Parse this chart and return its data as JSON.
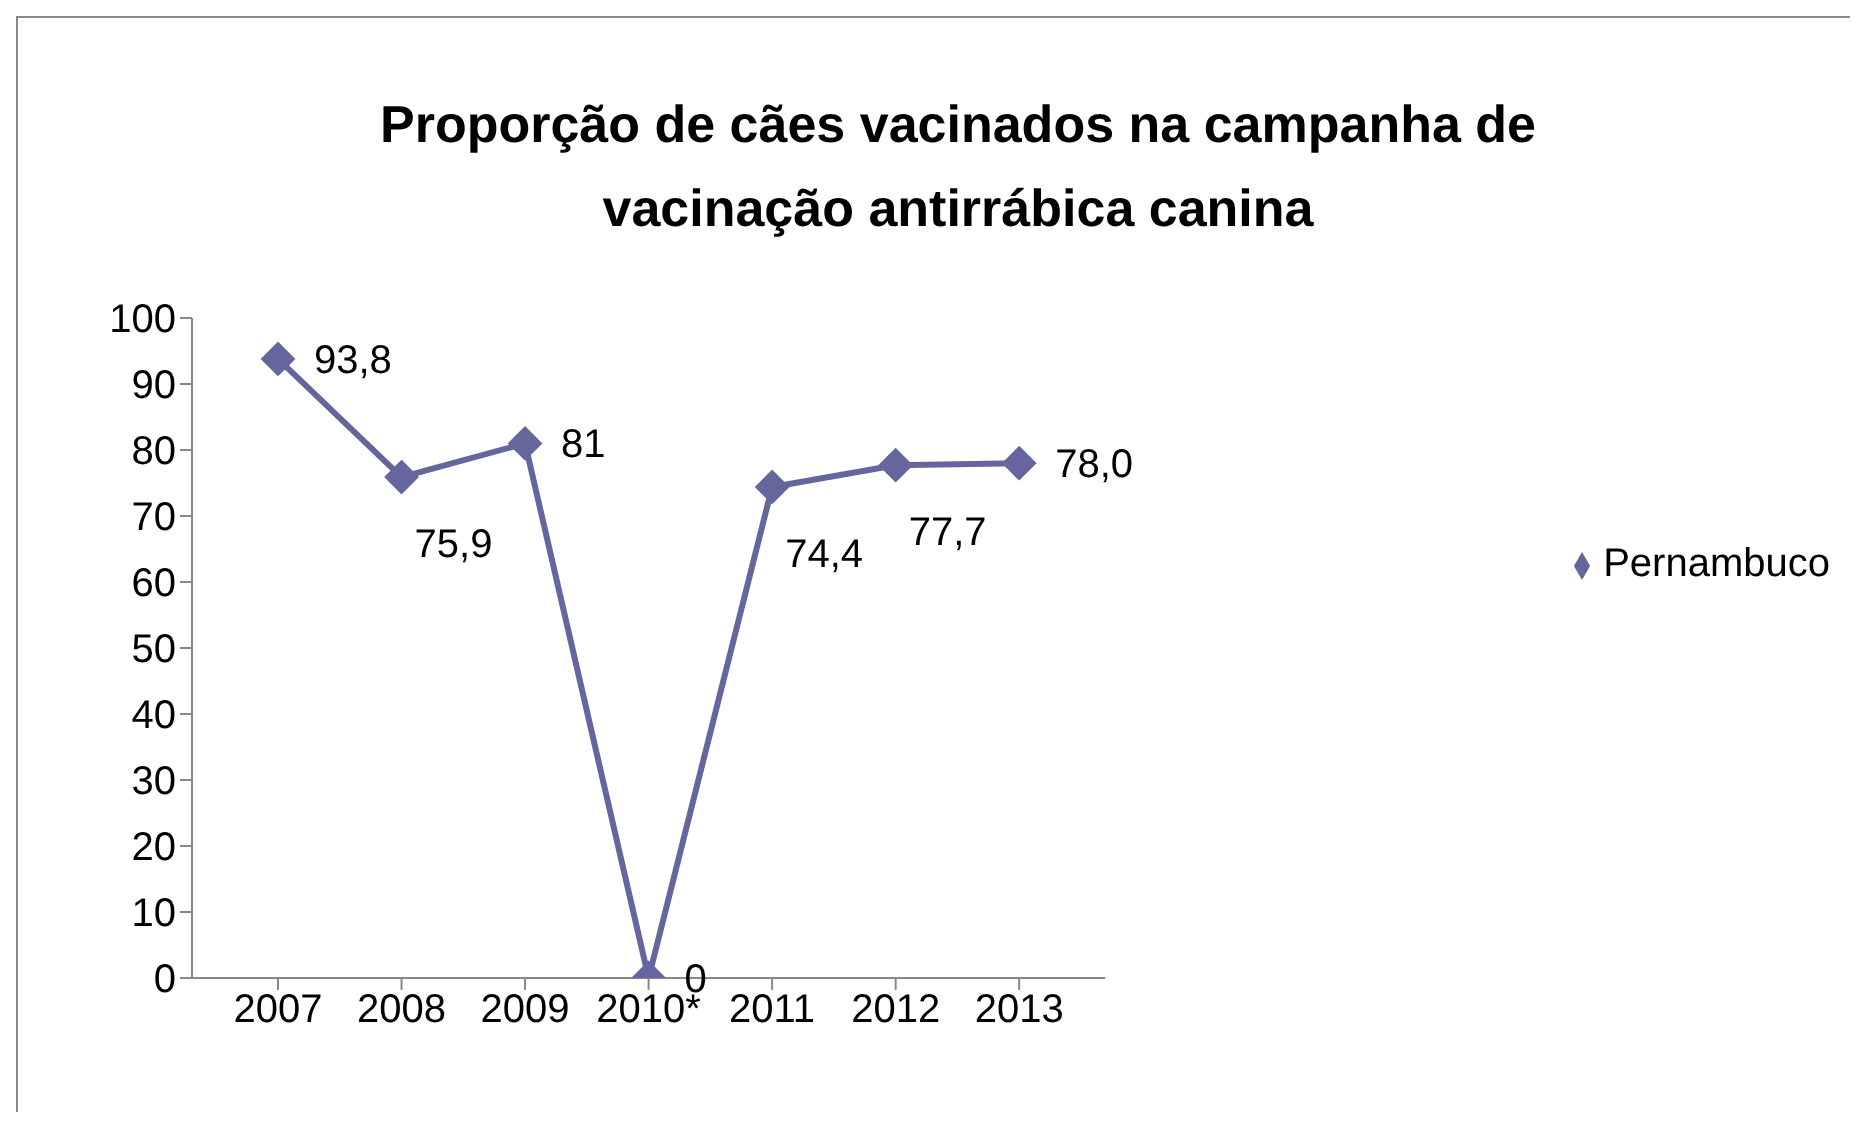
{
  "chart_data": {
    "type": "line",
    "title": "Proporção de cães vacinados na campanha de vacinação antirrábica canina",
    "categories": [
      "2007",
      "2008",
      "2009",
      "2010*",
      "2011",
      "2012",
      "2013"
    ],
    "series": [
      {
        "name": "Pernambuco",
        "color": "#66669e",
        "values": [
          93.8,
          75.9,
          81,
          0,
          74.4,
          77.7,
          78.0
        ],
        "value_labels": [
          "93,8",
          "75,9",
          "81",
          "0",
          "74,4",
          "77,7",
          "78,0"
        ]
      }
    ],
    "ylim": [
      0,
      100
    ],
    "yticks": [
      0,
      10,
      20,
      30,
      40,
      50,
      60,
      70,
      80,
      90,
      100
    ],
    "grid": false,
    "legend": "right",
    "marker": "diamond",
    "line_style": "solid"
  }
}
